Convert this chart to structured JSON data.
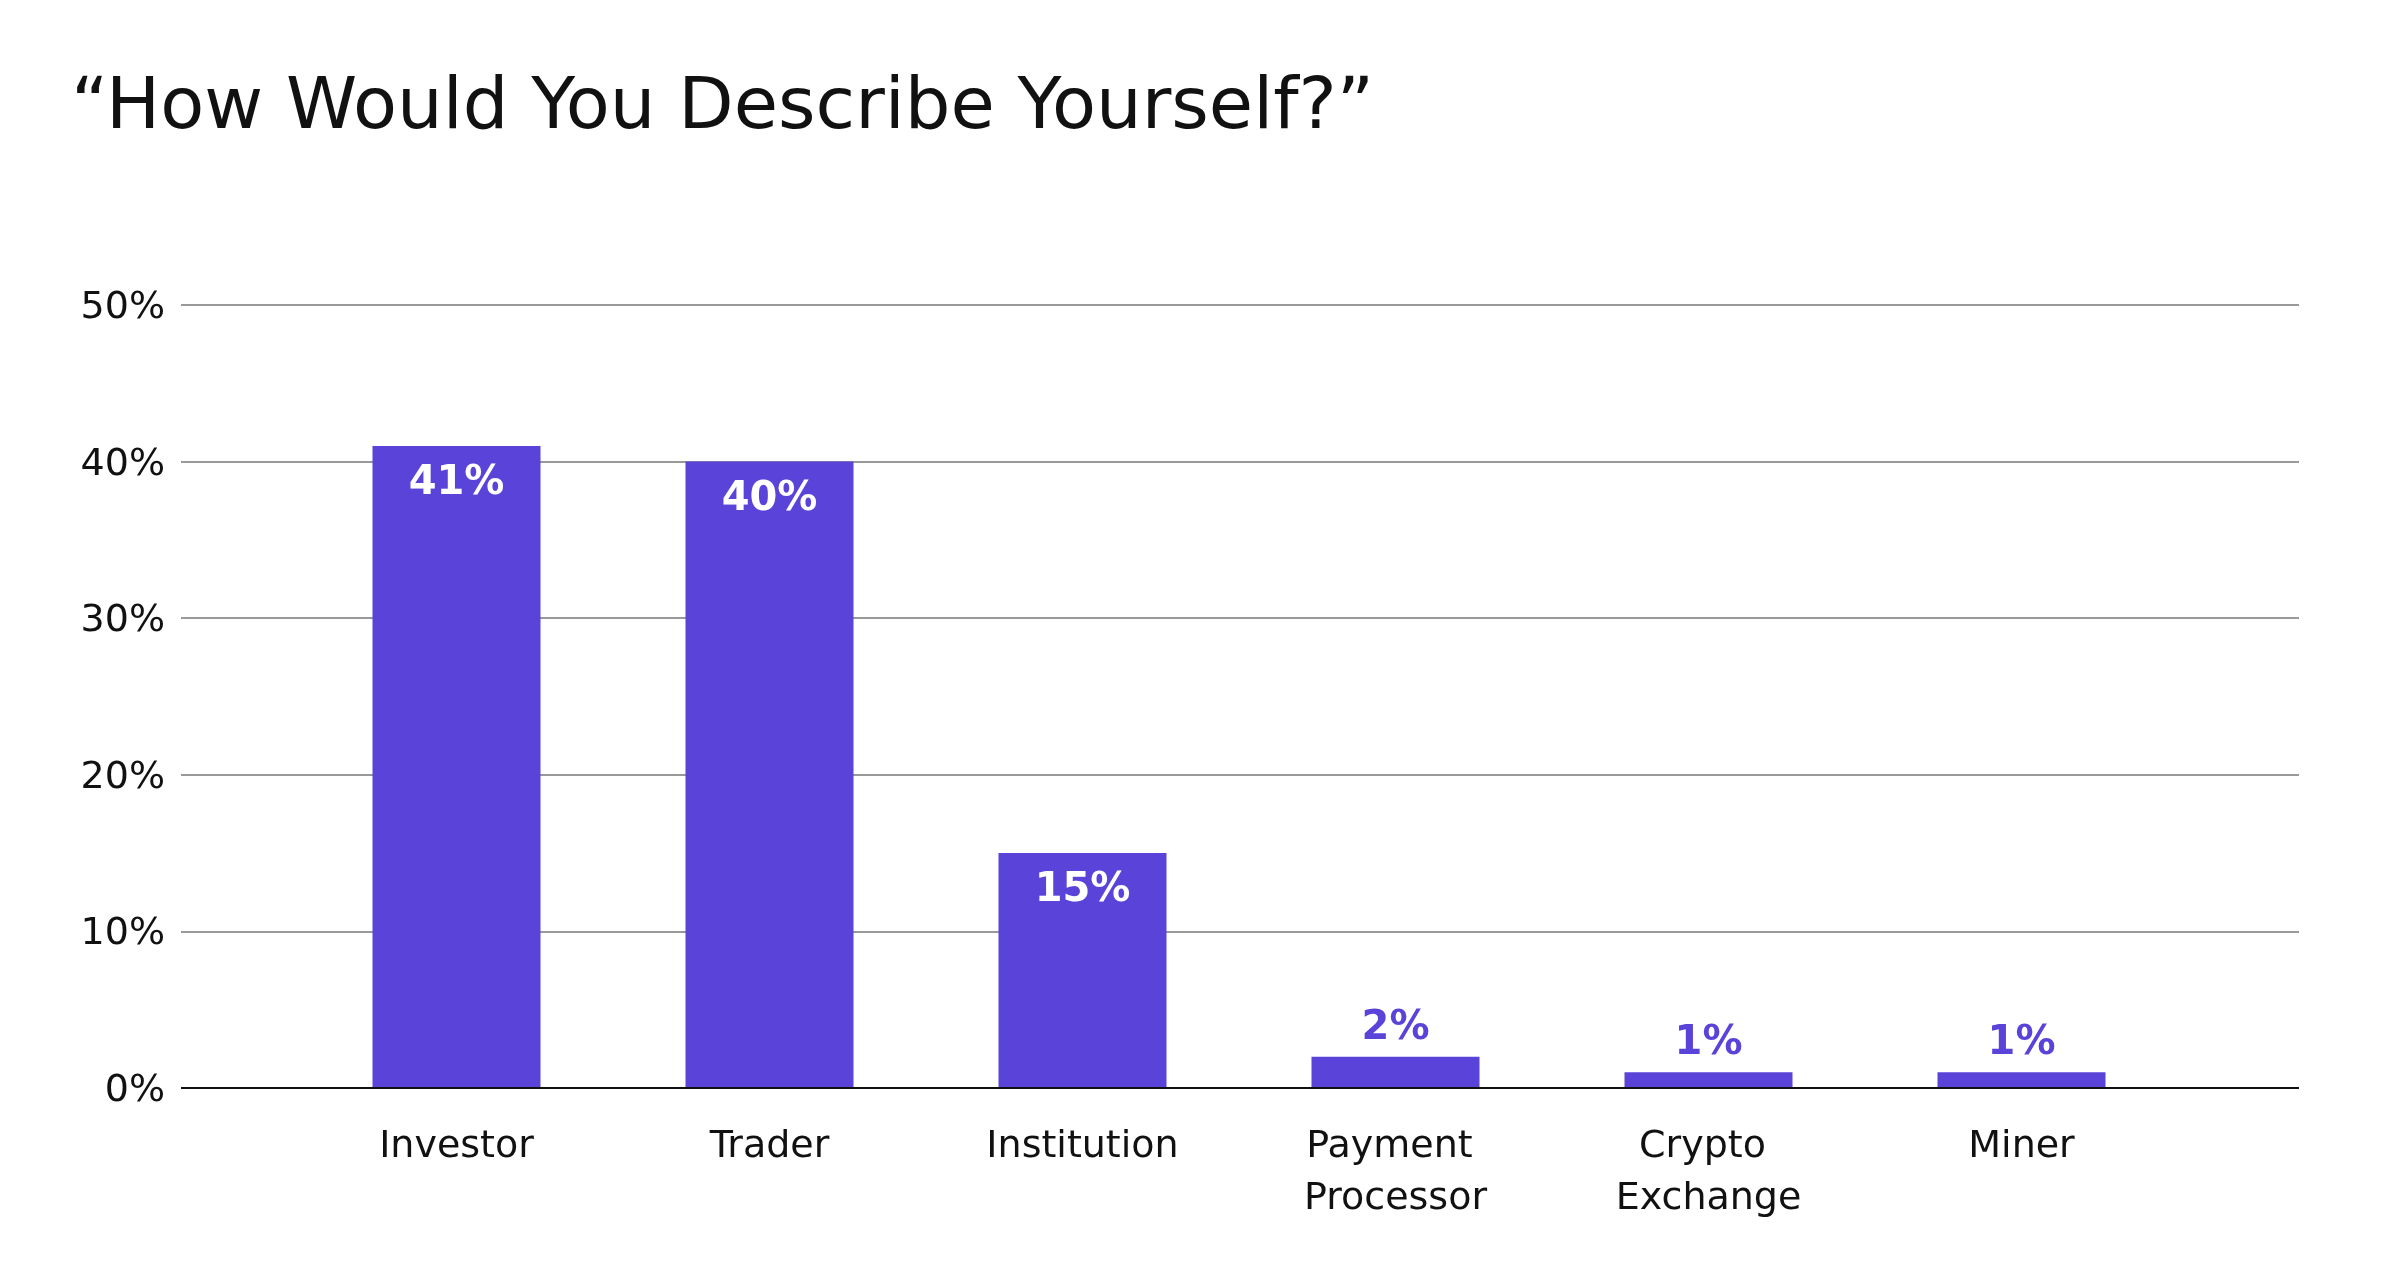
{
  "chart_data": {
    "type": "bar",
    "title": "“How Would You Describe Yourself?”",
    "categories": [
      "Investor",
      "Trader",
      "Institution",
      "Payment Processor",
      "Crypto Exchange",
      "Miner"
    ],
    "values": [
      41,
      40,
      15,
      2,
      1,
      1
    ],
    "color": "#5a43d8",
    "ylim": [
      0,
      50
    ],
    "yticks": [
      {
        "value": 0,
        "label": "0%"
      },
      {
        "value": 10,
        "label": "10%"
      },
      {
        "value": 20,
        "label": "20%"
      },
      {
        "value": 30,
        "label": "30%"
      },
      {
        "value": 40,
        "label": "40%"
      },
      {
        "value": 50,
        "label": "50%"
      }
    ],
    "value_labels": [
      "41%",
      "40%",
      "15%",
      "2%",
      "1%",
      "1%"
    ],
    "grid": "y"
  }
}
